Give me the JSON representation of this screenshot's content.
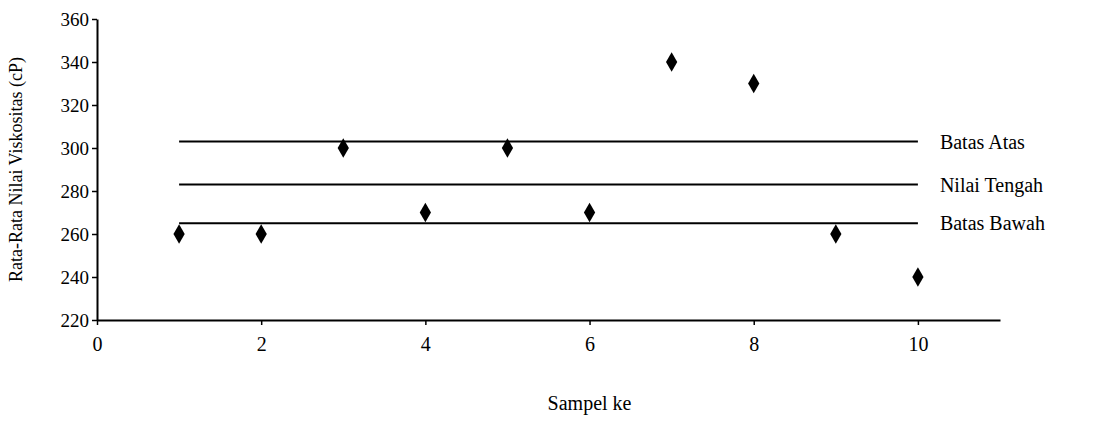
{
  "chart_data": {
    "type": "scatter",
    "x_label": "Sampel ke",
    "y_label": "Rata-Rata Nilai Viskositas (cP)",
    "xlim": [
      0,
      11
    ],
    "xticks": [
      0,
      2,
      4,
      6,
      8,
      10
    ],
    "ylim": [
      220,
      360
    ],
    "yticks": [
      220,
      240,
      260,
      280,
      300,
      320,
      340,
      360
    ],
    "grid": false,
    "series": [
      {
        "type": "scatter",
        "marker": "diamond",
        "color": "#000000",
        "x": [
          1,
          2,
          3,
          4,
          5,
          6,
          7,
          8,
          9,
          10
        ],
        "values": [
          260,
          260,
          300,
          270,
          300,
          270,
          340,
          330,
          260,
          240
        ]
      },
      {
        "name": "Batas Atas",
        "type": "line",
        "color": "#000000",
        "x": [
          1,
          10
        ],
        "values": [
          303,
          303
        ]
      },
      {
        "name": "Nilai Tengah",
        "type": "line",
        "color": "#000000",
        "x": [
          1,
          10
        ],
        "values": [
          283,
          283
        ]
      },
      {
        "name": "Batas Bawah",
        "type": "line",
        "color": "#000000",
        "x": [
          1,
          10
        ],
        "values": [
          265,
          265
        ]
      }
    ]
  }
}
